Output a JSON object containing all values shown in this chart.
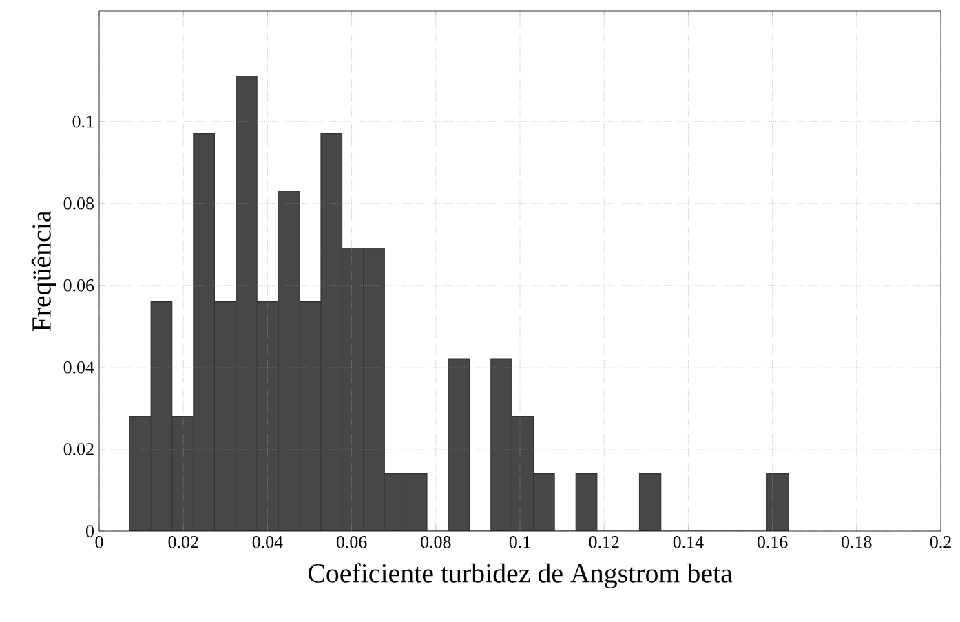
{
  "chart_data": {
    "type": "histogram",
    "xlabel": "Coeficiente turbidez de Angstrom beta",
    "ylabel": "Freqüência",
    "bins": [
      0.0072,
      0.0123,
      0.0173,
      0.0224,
      0.0274,
      0.0325,
      0.0375,
      0.0426,
      0.0476,
      0.0527,
      0.0577,
      0.0628,
      0.0678,
      0.0729,
      0.0779,
      0.083,
      0.088,
      0.0931,
      0.0981,
      0.1032,
      0.1082,
      0.1133,
      0.1183,
      0.1284,
      0.1335,
      0.1587,
      0.1638
    ],
    "values": [
      0.028,
      0.056,
      0.028,
      0.097,
      0.056,
      0.111,
      0.056,
      0.083,
      0.056,
      0.097,
      0.069,
      0.069,
      0.014,
      0.014,
      0,
      0.042,
      0,
      0.042,
      0.028,
      0.014,
      0,
      0.014,
      0,
      0.014,
      0,
      0.014
    ],
    "color": "#474747",
    "xlim": [
      0,
      0.2
    ],
    "ylim": [
      0,
      0.127
    ],
    "xticks": [
      0,
      0.02,
      0.04,
      0.06,
      0.08,
      0.1,
      0.12,
      0.14,
      0.16,
      0.18,
      0.2
    ],
    "yticks": [
      0,
      0.02,
      0.04,
      0.06,
      0.08,
      0.1
    ],
    "grid": true
  }
}
